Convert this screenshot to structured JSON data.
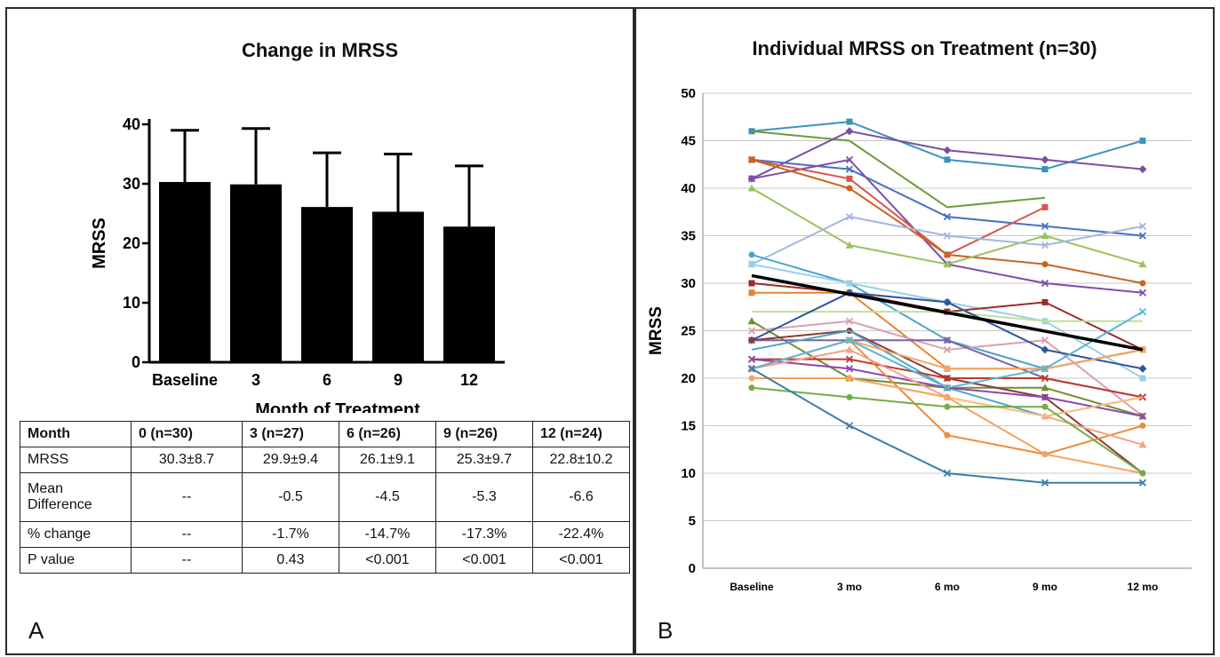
{
  "panel_a": {
    "letter": "A",
    "table": {
      "header": [
        "Month",
        "0 (n=30)",
        "3 (n=27)",
        "6 (n=26)",
        "9 (n=26)",
        "12 (n=24)"
      ],
      "rows": [
        [
          "MRSS",
          "30.3±8.7",
          "29.9±9.4",
          "26.1±9.1",
          "25.3±9.7",
          "22.8±10.2"
        ],
        [
          "Mean Difference",
          "--",
          "-0.5",
          "-4.5",
          "-5.3",
          "-6.6"
        ],
        [
          "% change",
          "--",
          "-1.7%",
          "-14.7%",
          "-17.3%",
          "-22.4%"
        ],
        [
          "P value",
          "--",
          "0.43",
          "<0.001",
          "<0.001",
          "<0.001"
        ]
      ]
    }
  },
  "panel_b": {
    "letter": "B"
  },
  "chart_data": [
    {
      "type": "bar",
      "title": "Change in MRSS",
      "xlabel": "Month of Treatment",
      "ylabel": "MRSS",
      "categories": [
        "Baseline",
        "3",
        "6",
        "9",
        "12"
      ],
      "values": [
        30.3,
        29.9,
        26.1,
        25.3,
        22.8
      ],
      "error_plus": [
        8.7,
        9.4,
        9.1,
        9.7,
        10.2
      ],
      "ylim": [
        0,
        40
      ],
      "yticks": [
        0,
        10,
        20,
        30,
        40
      ],
      "bar_color": "#000000"
    },
    {
      "type": "line",
      "title": "Individual MRSS on Treatment (n=30)",
      "ylabel": "MRSS",
      "categories": [
        "Baseline",
        "3 mo",
        "6 mo",
        "9 mo",
        "12 mo"
      ],
      "ylim": [
        0,
        50
      ],
      "yticks": [
        0,
        5,
        10,
        15,
        20,
        25,
        30,
        35,
        40,
        45,
        50
      ],
      "grid": true,
      "trend": {
        "values": [
          30.8,
          29,
          27,
          25,
          23
        ],
        "color": "#000000"
      },
      "series": [
        {
          "values": [
            46,
            47,
            43,
            42,
            45
          ],
          "color": "#3b93b8",
          "marker": "square"
        },
        {
          "values": [
            46,
            45,
            38,
            39,
            null
          ],
          "color": "#6e9a3a",
          "marker": "none"
        },
        {
          "values": [
            41,
            46,
            44,
            43,
            42
          ],
          "color": "#7a4fa0",
          "marker": "diamond"
        },
        {
          "values": [
            43,
            42,
            37,
            36,
            35
          ],
          "color": "#4472c4",
          "marker": "x"
        },
        {
          "values": [
            41,
            43,
            32,
            30,
            29
          ],
          "color": "#7b4fa6",
          "marker": "x"
        },
        {
          "values": [
            43,
            41,
            33,
            38,
            null
          ],
          "color": "#d9534f",
          "marker": "square"
        },
        {
          "values": [
            43,
            40,
            33,
            32,
            30
          ],
          "color": "#c8641e",
          "marker": "circle"
        },
        {
          "values": [
            40,
            34,
            32,
            35,
            32
          ],
          "color": "#9bc25a",
          "marker": "triangle"
        },
        {
          "values": [
            32,
            37,
            35,
            34,
            36
          ],
          "color": "#a3b5e0",
          "marker": "x"
        },
        {
          "values": [
            33,
            30,
            24,
            21,
            23
          ],
          "color": "#4aa3c9",
          "marker": "circle"
        },
        {
          "values": [
            32,
            30,
            28,
            26,
            20
          ],
          "color": "#9ad0e6",
          "marker": "square"
        },
        {
          "values": [
            30,
            29,
            27,
            28,
            23
          ],
          "color": "#9c2a2a",
          "marker": "square"
        },
        {
          "values": [
            29,
            29,
            21,
            21,
            23
          ],
          "color": "#e6822e",
          "marker": "square"
        },
        {
          "values": [
            27,
            27,
            27,
            26,
            26
          ],
          "color": "#bfe09a",
          "marker": "none"
        },
        {
          "values": [
            26,
            20,
            19,
            19,
            16
          ],
          "color": "#6f8f2e",
          "marker": "triangle"
        },
        {
          "values": [
            25,
            26,
            23,
            24,
            16
          ],
          "color": "#d9a0b3",
          "marker": "x"
        },
        {
          "values": [
            24,
            29,
            28,
            23,
            21
          ],
          "color": "#2f5597",
          "marker": "diamond"
        },
        {
          "values": [
            24,
            24,
            24,
            20,
            18
          ],
          "color": "#7f5fa8",
          "marker": "x"
        },
        {
          "values": [
            24,
            25,
            20,
            18,
            10
          ],
          "color": "#8b3a3a",
          "marker": "circle"
        },
        {
          "values": [
            23,
            25,
            19,
            16,
            18
          ],
          "color": "#4fa8c8",
          "marker": "none"
        },
        {
          "values": [
            22,
            22,
            20,
            20,
            18
          ],
          "color": "#c0392b",
          "marker": "x"
        },
        {
          "values": [
            22,
            21,
            19,
            18,
            16
          ],
          "color": "#8e44ad",
          "marker": "x"
        },
        {
          "values": [
            21,
            24,
            14,
            12,
            15
          ],
          "color": "#f08a3a",
          "marker": "circle"
        },
        {
          "values": [
            21,
            24,
            21,
            21,
            23
          ],
          "color": "#f4a460",
          "marker": "square"
        },
        {
          "values": [
            21,
            23,
            18,
            16,
            13
          ],
          "color": "#f5a08a",
          "marker": "triangle"
        },
        {
          "values": [
            20,
            20,
            18,
            16,
            18
          ],
          "color": "#ffbf80",
          "marker": "none"
        },
        {
          "values": [
            21,
            24,
            19,
            21,
            27
          ],
          "color": "#5bb5d5",
          "marker": "x"
        },
        {
          "values": [
            20,
            20,
            18,
            12,
            10
          ],
          "color": "#f7a35c",
          "marker": "circle"
        },
        {
          "values": [
            19,
            18,
            17,
            17,
            10
          ],
          "color": "#70ad47",
          "marker": "circle"
        },
        {
          "values": [
            21,
            15,
            10,
            9,
            9
          ],
          "color": "#3a7ca5",
          "marker": "x"
        }
      ]
    }
  ]
}
